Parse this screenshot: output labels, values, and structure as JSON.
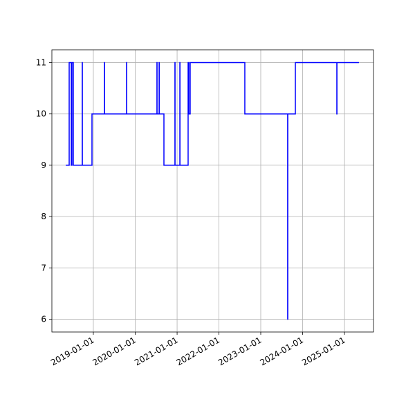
{
  "chart_data": {
    "type": "line",
    "grid": true,
    "x": [
      "2018-05-05",
      "2018-06-04",
      "2018-06-04",
      "2018-06-22",
      "2018-06-22",
      "2018-06-28",
      "2018-06-28",
      "2018-07-10",
      "2018-07-10",
      "2018-09-26",
      "2018-09-26",
      "2018-09-27",
      "2018-09-27",
      "2018-12-20",
      "2018-12-20",
      "2019-04-08",
      "2019-04-08",
      "2019-04-09",
      "2019-04-09",
      "2019-10-18",
      "2019-10-18",
      "2019-10-19",
      "2019-10-19",
      "2020-07-09",
      "2020-07-09",
      "2020-07-10",
      "2020-07-10",
      "2020-07-28",
      "2020-07-28",
      "2020-07-29",
      "2020-07-29",
      "2020-09-08",
      "2020-09-08",
      "2020-12-13",
      "2020-12-13",
      "2020-12-14",
      "2020-12-14",
      "2021-01-25",
      "2021-01-25",
      "2021-01-26",
      "2021-01-26",
      "2021-04-07",
      "2021-04-07",
      "2021-04-13",
      "2021-04-13",
      "2021-04-25",
      "2021-04-25",
      "2022-08-15",
      "2022-08-15",
      "2023-08-24",
      "2023-08-24",
      "2023-08-25",
      "2023-08-25",
      "2023-10-30",
      "2023-10-30",
      "2024-10-26",
      "2024-10-26",
      "2024-10-27",
      "2024-10-27",
      "2025-05-07"
    ],
    "series": [
      {
        "color": "#0000ff",
        "values": [
          9,
          9,
          11,
          11,
          9,
          9,
          11,
          11,
          9,
          9,
          11,
          11,
          9,
          9,
          10,
          10,
          11,
          11,
          10,
          10,
          11,
          11,
          10,
          10,
          11,
          11,
          10,
          10,
          11,
          11,
          10,
          10,
          9,
          9,
          11,
          11,
          9,
          9,
          11,
          11,
          9,
          9,
          11,
          11,
          10,
          10,
          11,
          11,
          10,
          10,
          6,
          6,
          10,
          10,
          11,
          11,
          10,
          10,
          11,
          11
        ]
      }
    ],
    "xlim": [
      "2018-01-04",
      "2025-09-11"
    ],
    "xticks": [
      "2019-01-01",
      "2020-01-01",
      "2021-01-01",
      "2022-01-01",
      "2023-01-01",
      "2024-01-01",
      "2025-01-01"
    ],
    "ylim": [
      5.75,
      11.25
    ],
    "yticks": [
      6,
      7,
      8,
      9,
      10,
      11
    ]
  }
}
